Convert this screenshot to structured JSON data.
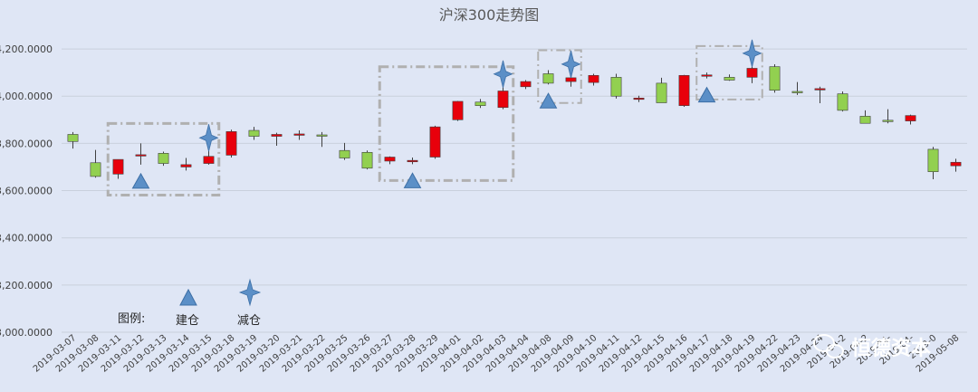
{
  "chart_data": {
    "type": "candlestick",
    "title": "沪深300走势图",
    "ylim": [
      3000,
      4300
    ],
    "y_ticks": [
      3000,
      3200,
      3400,
      3600,
      3800,
      4000,
      4200
    ],
    "y_tick_labels": [
      "3,000.0000",
      "3,200.0000",
      "3,400.0000",
      "3,600.0000",
      "3,800.0000",
      "4,000.0000",
      "4,200.0000"
    ],
    "grid": true,
    "up_color": "#e8000b",
    "down_color": "#92d050",
    "dates": [
      "2019-03-07",
      "2019-03-08",
      "2019-03-11",
      "2019-03-12",
      "2019-03-13",
      "2019-03-14",
      "2019-03-15",
      "2019-03-18",
      "2019-03-19",
      "2019-03-20",
      "2019-03-21",
      "2019-03-22",
      "2019-03-25",
      "2019-03-26",
      "2019-03-27",
      "2019-03-28",
      "2019-03-29",
      "2019-04-01",
      "2019-04-02",
      "2019-04-03",
      "2019-04-04",
      "2019-04-08",
      "2019-04-09",
      "2019-04-10",
      "2019-04-11",
      "2019-04-12",
      "2019-04-15",
      "2019-04-16",
      "2019-04-17",
      "2019-04-18",
      "2019-04-19",
      "2019-04-22",
      "2019-04-23",
      "2019-04-24",
      "2019-04-25",
      "2019-04-26",
      "2019-04-29",
      "2019-04-30",
      "2019-05-06",
      "2019-05-08"
    ],
    "x_tick_labels": [
      "2019-03-07",
      "2019-03-08",
      "2019-03-11",
      "2019-03-12",
      "2019-03-13",
      "2019-03-14",
      "2019-03-15",
      "2019-03-18",
      "2019-03-19",
      "2019-03-20",
      "2019-03-21",
      "2019-03-22",
      "2019-03-25",
      "2019-03-26",
      "2019-03-27",
      "2019-03-28",
      "2019-03-29",
      "2019-04-01",
      "2019-04-02",
      "2019-04-03",
      "2019-04-04",
      "2019-04-08",
      "2019-04-09",
      "2019-04-10",
      "2019-04-11",
      "2019-04-12",
      "2019-04-15",
      "2019-04-16",
      "2019-04-17",
      "2019-04-18",
      "2019-04-19",
      "2019-04-22",
      "2019-04-23",
      "2019-04-24",
      "2019-04-2",
      "2019-04-2",
      "2019-04-",
      "2019-04-",
      "2019-0",
      "2019-05-08"
    ],
    "open": [
      3838,
      3718,
      3670,
      3750,
      3758,
      3700,
      3715,
      3750,
      3855,
      3830,
      3838,
      3836,
      3770,
      3762,
      3725,
      3722,
      3742,
      3900,
      3975,
      3952,
      4040,
      4095,
      4062,
      4058,
      4080,
      3988,
      4055,
      3960,
      4085,
      4080,
      4080,
      4125,
      4020,
      4030,
      4010,
      3915,
      3898,
      3895,
      3775,
      3705
    ],
    "high": [
      3848,
      3772,
      3732,
      3800,
      3765,
      3738,
      3770,
      3858,
      3870,
      3845,
      3855,
      3848,
      3802,
      3770,
      3745,
      3740,
      3875,
      3980,
      3988,
      4040,
      4068,
      4110,
      4082,
      4095,
      4095,
      4002,
      4078,
      4090,
      4100,
      4092,
      4128,
      4135,
      4060,
      4040,
      4020,
      3940,
      3945,
      3922,
      3785,
      3735
    ],
    "low": [
      3778,
      3655,
      3650,
      3710,
      3705,
      3685,
      3710,
      3740,
      3815,
      3790,
      3815,
      3785,
      3730,
      3690,
      3712,
      3712,
      3735,
      3895,
      3950,
      3945,
      4030,
      4050,
      4040,
      4045,
      3990,
      3975,
      3975,
      3955,
      4075,
      4065,
      4055,
      4015,
      4005,
      3970,
      3935,
      3885,
      3885,
      3880,
      3648,
      3680
    ],
    "close": [
      3808,
      3660,
      3732,
      3752,
      3715,
      3710,
      3745,
      3850,
      3830,
      3838,
      3840,
      3835,
      3738,
      3695,
      3742,
      3728,
      3870,
      3978,
      3960,
      4022,
      4062,
      4055,
      4078,
      4088,
      4000,
      3992,
      3972,
      4088,
      4090,
      4068,
      4118,
      4025,
      4018,
      4032,
      3940,
      3885,
      3896,
      3918,
      3680,
      3720
    ],
    "legend": {
      "label": "图例:",
      "buy": "建仓",
      "sell": "减仓"
    },
    "buy_markers": [
      3,
      15,
      21,
      28
    ],
    "sell_markers": [
      6,
      19,
      22,
      30
    ],
    "highlight_regions": [
      [
        2,
        6
      ],
      [
        14,
        19
      ],
      [
        21,
        22
      ],
      [
        28,
        30
      ]
    ]
  },
  "watermark": {
    "text": "恒德资本"
  }
}
